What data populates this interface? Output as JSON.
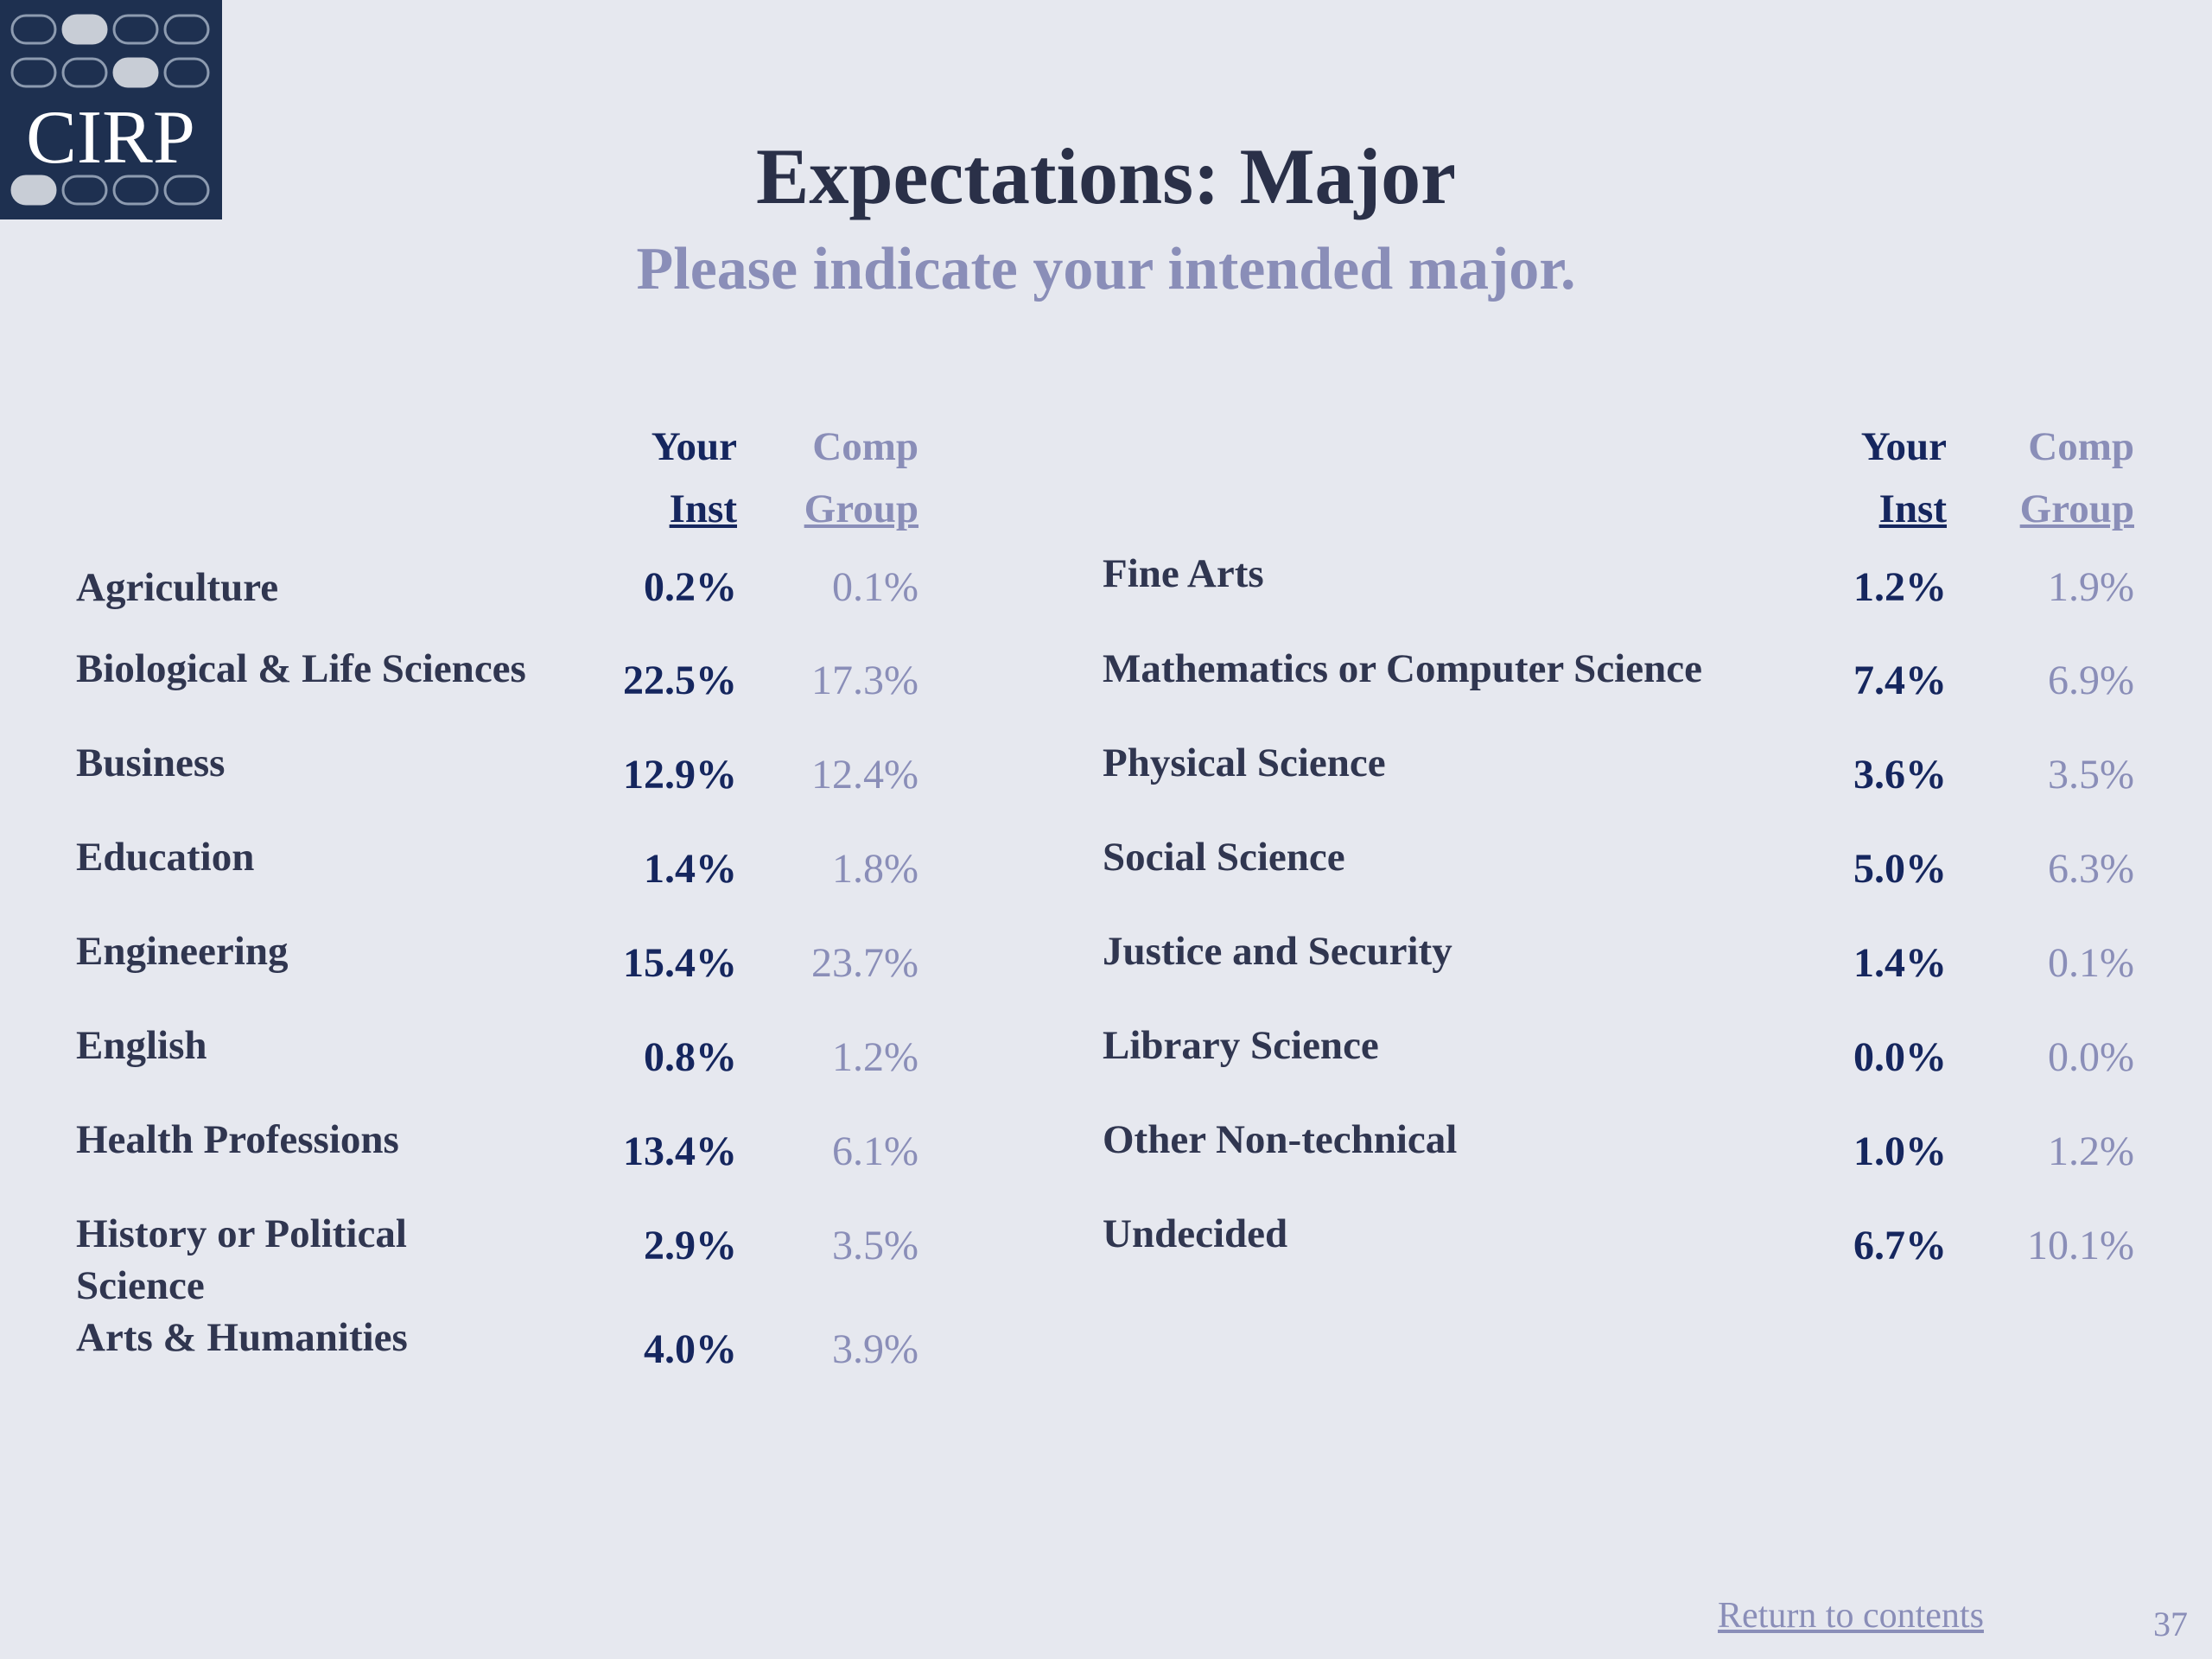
{
  "logo": {
    "text": "CIRP"
  },
  "title": "Expectations: Major",
  "subtitle": "Please indicate your intended major.",
  "headers": {
    "inst_line1": "Your",
    "inst_line2": "Inst",
    "comp_line1": "Comp",
    "comp_line2": "Group"
  },
  "left_rows": [
    {
      "label": "Agriculture",
      "inst": "0.2%",
      "comp": "0.1%"
    },
    {
      "label": "Biological & Life Sciences",
      "inst": "22.5%",
      "comp": "17.3%"
    },
    {
      "label": "Business",
      "inst": "12.9%",
      "comp": "12.4%"
    },
    {
      "label": "Education",
      "inst": "1.4%",
      "comp": "1.8%"
    },
    {
      "label": "Engineering",
      "inst": "15.4%",
      "comp": "23.7%"
    },
    {
      "label": "English",
      "inst": "0.8%",
      "comp": "1.2%"
    },
    {
      "label": "Health Professions",
      "inst": "13.4%",
      "comp": "6.1%"
    },
    {
      "label": "History or Political Science",
      "inst": "2.9%",
      "comp": "3.5%"
    },
    {
      "label": "Arts & Humanities",
      "inst": "4.0%",
      "comp": "3.9%"
    }
  ],
  "right_rows": [
    {
      "label": "Fine Arts",
      "inst": "1.2%",
      "comp": "1.9%"
    },
    {
      "label": "Mathematics or Computer Science",
      "inst": "7.4%",
      "comp": "6.9%"
    },
    {
      "label": "Physical Science",
      "inst": "3.6%",
      "comp": "3.5%"
    },
    {
      "label": "Social Science",
      "inst": "5.0%",
      "comp": "6.3%"
    },
    {
      "label": "Justice and Security",
      "inst": "1.4%",
      "comp": "0.1%"
    },
    {
      "label": "Library Science",
      "inst": "0.0%",
      "comp": "0.0%"
    },
    {
      "label": "Other Non-technical",
      "inst": "1.0%",
      "comp": "1.2%"
    },
    {
      "label": "Undecided",
      "inst": "6.7%",
      "comp": "10.1%"
    }
  ],
  "footer": {
    "link": "Return to contents",
    "page": "37"
  }
}
